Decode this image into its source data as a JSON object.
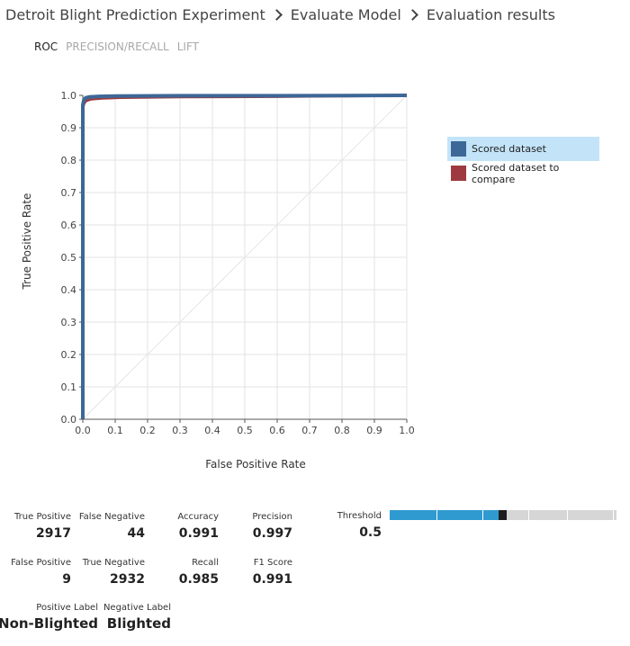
{
  "breadcrumb": [
    "Detroit Blight Prediction Experiment",
    "Evaluate Model",
    "Evaluation results"
  ],
  "tabs": [
    {
      "label": "ROC",
      "active": true
    },
    {
      "label": "PRECISION/RECALL",
      "active": false
    },
    {
      "label": "LIFT",
      "active": false
    }
  ],
  "chart_data": {
    "type": "line",
    "xlabel": "False Positive Rate",
    "ylabel": "True Positive Rate",
    "xlim": [
      0,
      1
    ],
    "ylim": [
      0,
      1
    ],
    "xticks": [
      "0.0",
      "0.1",
      "0.2",
      "0.3",
      "0.4",
      "0.5",
      "0.6",
      "0.7",
      "0.8",
      "0.9",
      "1.0"
    ],
    "yticks": [
      "0.0",
      "0.1",
      "0.2",
      "0.3",
      "0.4",
      "0.5",
      "0.6",
      "0.7",
      "0.8",
      "0.9",
      "1.0"
    ],
    "grid": true,
    "legend_position": "right",
    "diagonal_color": "#e6e6e6",
    "series": [
      {
        "name": "Scored dataset",
        "color": "#3d6797",
        "x": [
          0,
          0,
          0.003,
          0.008,
          0.02,
          0.05,
          0.1,
          0.3,
          0.6,
          1
        ],
        "y": [
          0,
          0.97,
          0.985,
          0.992,
          0.995,
          0.997,
          0.998,
          0.999,
          0.999,
          1
        ]
      },
      {
        "name": "Scored dataset to compare",
        "color": "#9e3a3f",
        "x": [
          0,
          0,
          0.004,
          0.01,
          0.025,
          0.06,
          0.12,
          0.3,
          0.6,
          1
        ],
        "y": [
          0,
          0.96,
          0.975,
          0.983,
          0.988,
          0.991,
          0.993,
          0.995,
          0.996,
          1
        ]
      }
    ]
  },
  "legend": [
    {
      "label": "Scored dataset",
      "color": "#3d6797",
      "selected": true
    },
    {
      "label": "Scored dataset to compare",
      "color": "#9e3a3f",
      "selected": false
    }
  ],
  "metrics": {
    "true_positive": {
      "label": "True Positive",
      "value": "2917"
    },
    "false_negative": {
      "label": "False Negative",
      "value": "44"
    },
    "accuracy": {
      "label": "Accuracy",
      "value": "0.991"
    },
    "precision": {
      "label": "Precision",
      "value": "0.997"
    },
    "false_positive": {
      "label": "False Positive",
      "value": "9"
    },
    "true_negative": {
      "label": "True Negative",
      "value": "2932"
    },
    "recall": {
      "label": "Recall",
      "value": "0.985"
    },
    "f1_score": {
      "label": "F1 Score",
      "value": "0.991"
    },
    "positive_label": {
      "label": "Positive Label",
      "value": "Non-Blighted"
    },
    "negative_label": {
      "label": "Negative Label",
      "value": "Blighted"
    }
  },
  "threshold": {
    "label": "Threshold",
    "value": "0.5",
    "level": 0.5,
    "fill_color": "#2f9ad0",
    "track_color": "#d6d6d6",
    "thumb_color": "#1d1d1d"
  }
}
